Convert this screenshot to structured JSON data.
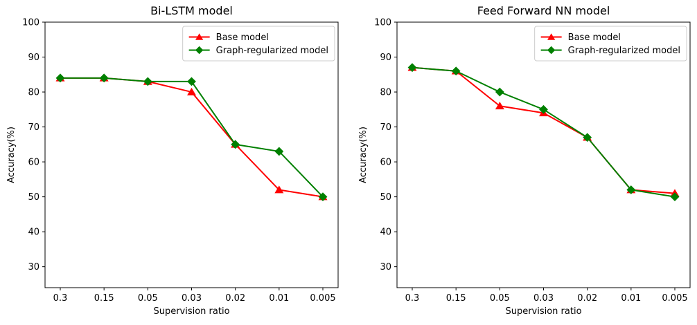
{
  "figure": {
    "background": "#ffffff"
  },
  "chart_data": [
    {
      "type": "line",
      "title": "Bi-LSTM model",
      "xlabel": "Supervision ratio",
      "ylabel": "Accuracy(%)",
      "categories": [
        "0.3",
        "0.15",
        "0.05",
        "0.03",
        "0.02",
        "0.01",
        "0.005"
      ],
      "yticks": [
        30,
        40,
        50,
        60,
        70,
        80,
        90,
        100
      ],
      "ylim": [
        24,
        100
      ],
      "grid": false,
      "legend_position": "upper right",
      "series": [
        {
          "name": "Base model",
          "color": "#ff0000",
          "marker": "triangle",
          "values": [
            84,
            84,
            83,
            80,
            65,
            52,
            50
          ]
        },
        {
          "name": "Graph-regularized model",
          "color": "#008000",
          "marker": "diamond",
          "values": [
            84,
            84,
            83,
            83,
            65,
            63,
            50
          ]
        }
      ]
    },
    {
      "type": "line",
      "title": "Feed Forward NN model",
      "xlabel": "Supervision ratio",
      "ylabel": "Accuracy(%)",
      "categories": [
        "0.3",
        "0.15",
        "0.05",
        "0.03",
        "0.02",
        "0.01",
        "0.005"
      ],
      "yticks": [
        30,
        40,
        50,
        60,
        70,
        80,
        90,
        100
      ],
      "ylim": [
        24,
        100
      ],
      "grid": false,
      "legend_position": "upper right",
      "series": [
        {
          "name": "Base model",
          "color": "#ff0000",
          "marker": "triangle",
          "values": [
            87,
            86,
            76,
            74,
            67,
            52,
            51
          ]
        },
        {
          "name": "Graph-regularized model",
          "color": "#008000",
          "marker": "diamond",
          "values": [
            87,
            86,
            80,
            75,
            67,
            52,
            50
          ]
        }
      ]
    }
  ],
  "legend": {
    "edge_color": "#cccccc",
    "background": "#ffffff"
  },
  "axes": {
    "spine_color": "#000000",
    "tick_color": "#000000"
  }
}
